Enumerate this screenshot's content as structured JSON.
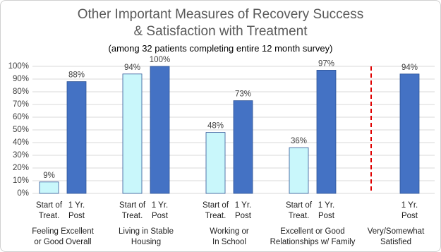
{
  "chart_data": {
    "type": "bar",
    "title": [
      "Other Important Measures of Recovery Success",
      "& Satisfaction with Treatment"
    ],
    "subtitle": "(among 32 patients completing entire 12 month survey)",
    "categories": [
      [
        "Feeling Excellent",
        "or Good Overall"
      ],
      [
        "Living in Stable",
        "Housing"
      ],
      [
        "Working or",
        "In School"
      ],
      [
        "Excellent or Good",
        "Relationships w/ Family"
      ],
      [
        "Very/Somewhat",
        "Satisfied"
      ]
    ],
    "series": [
      {
        "name": "Start of Treat.",
        "color": "#c9f7fb",
        "values": [
          9,
          94,
          48,
          36,
          null
        ],
        "value_labels": [
          "9%",
          "94%",
          "48%",
          "36%",
          null
        ]
      },
      {
        "name": "1 Yr. Post",
        "color": "#4472c4",
        "values": [
          88,
          100,
          73,
          97,
          94
        ],
        "value_labels": [
          "88%",
          "100%",
          "73%",
          "97%",
          "94%"
        ]
      }
    ],
    "ylim": [
      0,
      100
    ],
    "yticks": [
      {
        "value": 0,
        "label": "0%"
      },
      {
        "value": 10,
        "label": "10%"
      },
      {
        "value": 20,
        "label": "20%"
      },
      {
        "value": 30,
        "label": "30%"
      },
      {
        "value": 40,
        "label": "40%"
      },
      {
        "value": 50,
        "label": "50%"
      },
      {
        "value": 60,
        "label": "60%"
      },
      {
        "value": 70,
        "label": "70%"
      },
      {
        "value": 80,
        "label": "80%"
      },
      {
        "value": 90,
        "label": "90%"
      },
      {
        "value": 100,
        "label": "100%"
      }
    ],
    "grid": true
  }
}
